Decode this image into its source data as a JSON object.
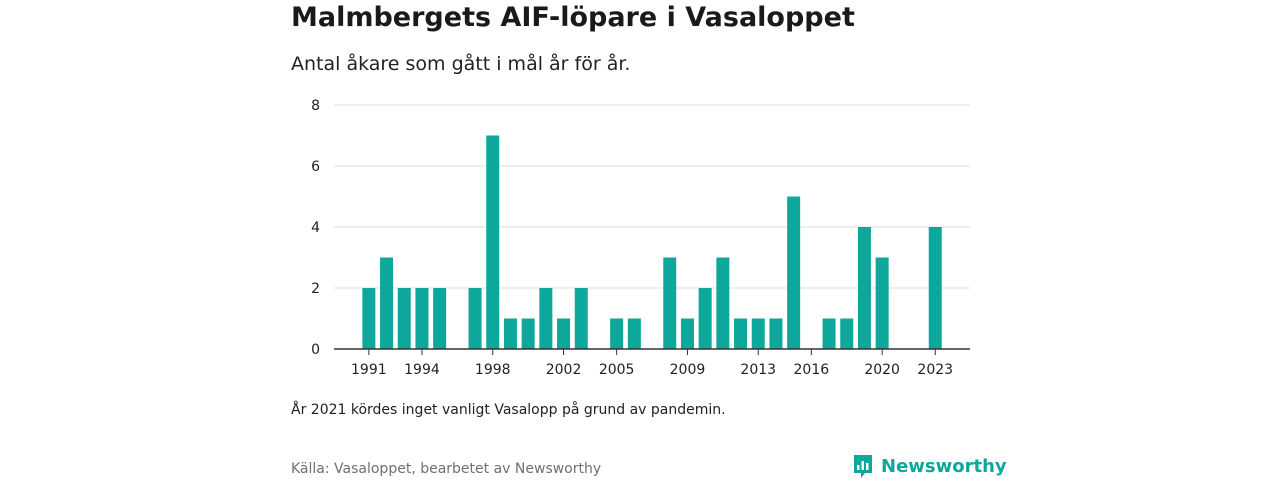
{
  "title": "Malmbergets AIF-löpare i Vasaloppet",
  "subtitle": "Antal åkare som gått i mål år för år.",
  "note": "År 2021 kördes inget vanligt Vasalopp på grund av pandemin.",
  "source": "Källa: Vasaloppet, bearbetet av Newsworthy",
  "logo": {
    "text": "Newsworthy",
    "icon": "newsworthy-bar-icon",
    "color": "#0ea79b"
  },
  "chart_data": {
    "type": "bar",
    "x": [
      1991,
      1992,
      1993,
      1994,
      1995,
      1996,
      1997,
      1998,
      1999,
      2000,
      2001,
      2002,
      2003,
      2004,
      2005,
      2006,
      2007,
      2008,
      2009,
      2010,
      2011,
      2012,
      2013,
      2014,
      2015,
      2016,
      2017,
      2018,
      2019,
      2020,
      2021,
      2022,
      2023
    ],
    "values": [
      2,
      3,
      2,
      2,
      2,
      0,
      2,
      7,
      1,
      1,
      2,
      1,
      2,
      0,
      1,
      1,
      0,
      3,
      1,
      2,
      3,
      1,
      1,
      1,
      5,
      0,
      1,
      1,
      4,
      3,
      0,
      0,
      4
    ],
    "x_tick_labels": [
      "1991",
      "1994",
      "1998",
      "2002",
      "2005",
      "2009",
      "2013",
      "2016",
      "2020",
      "2023"
    ],
    "y_ticks": [
      0,
      2,
      4,
      6,
      8
    ],
    "ylim": [
      0,
      8
    ],
    "xlabel": "",
    "ylabel": "",
    "bar_color": "#0ea79b",
    "grid": true,
    "legend": "none"
  }
}
